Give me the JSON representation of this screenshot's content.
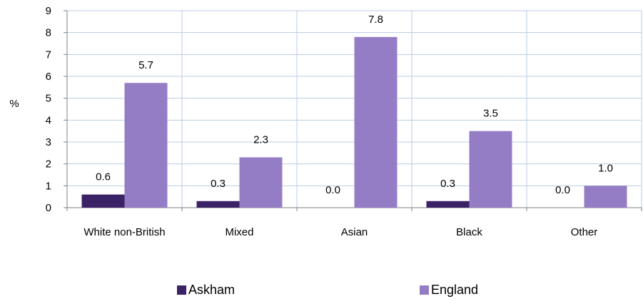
{
  "chart_data": {
    "type": "bar",
    "title": "",
    "ylabel": "%",
    "xlabel": "",
    "ylim": [
      0,
      9
    ],
    "yticks": [
      "0",
      "1",
      "2",
      "3",
      "4",
      "5",
      "6",
      "7",
      "8",
      "9"
    ],
    "categories": [
      "White non-British",
      "Mixed",
      "Asian",
      "Black",
      "Other"
    ],
    "series": [
      {
        "name": "Askham",
        "values": [
          0.6,
          0.3,
          0.0,
          0.3,
          0.0
        ],
        "labels": [
          "0.6",
          "0.3",
          "0.0",
          "0.3",
          "0.0"
        ],
        "color": "#3b2266"
      },
      {
        "name": "England",
        "values": [
          5.7,
          2.3,
          7.8,
          3.5,
          1.0
        ],
        "labels": [
          "5.7",
          "2.3",
          "7.8",
          "3.5",
          "1.0"
        ],
        "color": "#957dc6"
      }
    ],
    "grid": true,
    "grid_color": "#b9cde5",
    "legend_position": "bottom"
  }
}
